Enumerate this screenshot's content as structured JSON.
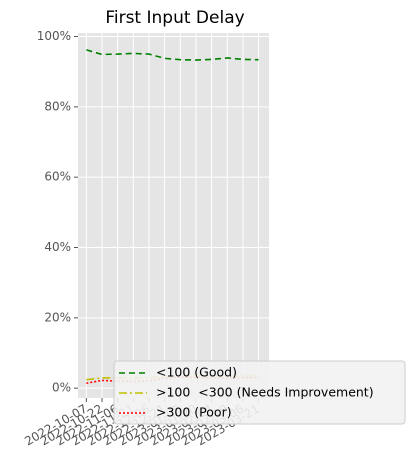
{
  "chart_data": {
    "type": "line",
    "title": "First Input Delay",
    "x": [
      "2022-10-07",
      "2022-10-22",
      "2022-11-06",
      "2022-11-21",
      "2022-12-06",
      "2022-12-21",
      "2023-01-05",
      "2023-01-20",
      "2023-02-04",
      "2023-02-19",
      "2023-03-06",
      "2023-03-21"
    ],
    "series": [
      {
        "name": "<100 (Good)",
        "color": "#008000",
        "dash": "6,4",
        "values": [
          96.2,
          94.9,
          95.0,
          95.2,
          95.0,
          93.8,
          93.4,
          93.3,
          93.5,
          93.9,
          93.5,
          93.4
        ]
      },
      {
        "name": ">100  <300 (Needs Improvement)",
        "color": "#bfbf00",
        "dash": "8,3,2,3",
        "values": [
          2.4,
          2.9,
          3.0,
          2.9,
          3.0,
          3.3,
          3.5,
          3.6,
          3.5,
          3.3,
          3.5,
          3.6
        ]
      },
      {
        "name": ">300 (Poor)",
        "color": "#ff0000",
        "dash": "2,2",
        "values": [
          1.4,
          2.2,
          2.0,
          1.9,
          2.0,
          2.9,
          3.1,
          3.1,
          3.0,
          2.8,
          3.0,
          3.0
        ]
      }
    ],
    "xlim": [
      "2022-09-29",
      "2023-03-31"
    ],
    "xticks": [
      "2022-10-07",
      "2022-10-22",
      "2022-11-06",
      "2022-11-21",
      "2022-12-06",
      "2022-12-21",
      "2023-01-05",
      "2023-01-20",
      "2023-02-04",
      "2023-02-19",
      "2023-03-06",
      "2023-03-21"
    ],
    "ylim": [
      -2.8,
      101
    ],
    "yticks": [
      {
        "value": 0,
        "label": "0%"
      },
      {
        "value": 20,
        "label": "20%"
      },
      {
        "value": 40,
        "label": "40%"
      },
      {
        "value": 60,
        "label": "60%"
      },
      {
        "value": 80,
        "label": "80%"
      },
      {
        "value": 100,
        "label": "100%"
      }
    ],
    "grid": true,
    "legend": "lower right"
  }
}
